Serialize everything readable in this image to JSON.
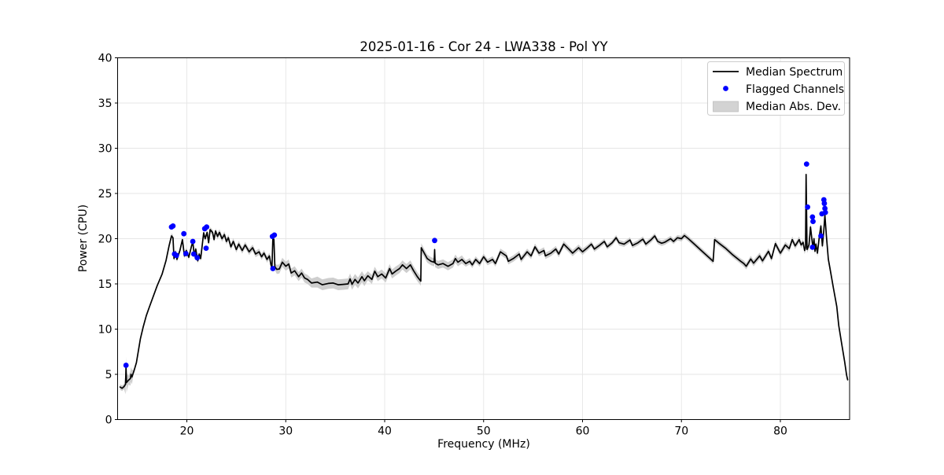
{
  "title": "2025-01-16 - Cor 24 - LWA338 - Pol YY",
  "axes": {
    "xlabel": "Frequency (MHz)",
    "ylabel": "Power (CPU)",
    "xlim": [
      13,
      87
    ],
    "ylim": [
      0,
      40
    ],
    "xticks": [
      20,
      30,
      40,
      50,
      60,
      70,
      80
    ],
    "yticks": [
      0,
      5,
      10,
      15,
      20,
      25,
      30,
      35,
      40
    ],
    "grid": true
  },
  "legend": {
    "position": "upper right",
    "entries": [
      {
        "label": "Median Spectrum",
        "type": "line",
        "color": "#000000"
      },
      {
        "label": "Flagged Channels",
        "type": "dot",
        "color": "#0000ff"
      },
      {
        "label": "Median Abs. Dev.",
        "type": "patch",
        "color": "#d3d3d3"
      }
    ]
  },
  "colors": {
    "median_line": "#000000",
    "flagged_dot": "#0000ff",
    "mad_band": "#c9c9c9",
    "grid": "#e6e6e6",
    "spine": "#000000",
    "background": "#ffffff",
    "legend_border": "#cccccc"
  },
  "chart_data": {
    "type": "line",
    "title": "2025-01-16 - Cor 24 - LWA338 - Pol YY",
    "xlabel": "Frequency (MHz)",
    "ylabel": "Power (CPU)",
    "xlim": [
      13,
      87
    ],
    "ylim": [
      0,
      40
    ],
    "legend_position": "upper right",
    "series": [
      {
        "name": "Median Spectrum",
        "kind": "line",
        "points": [
          [
            13.25,
            3.6
          ],
          [
            13.45,
            3.45
          ],
          [
            13.65,
            3.65
          ],
          [
            13.8,
            3.9
          ],
          [
            13.85,
            5.85
          ],
          [
            13.9,
            4.1
          ],
          [
            14.1,
            4.35
          ],
          [
            14.3,
            4.55
          ],
          [
            14.35,
            5.0
          ],
          [
            14.45,
            4.7
          ],
          [
            14.65,
            5.35
          ],
          [
            14.9,
            6.3
          ],
          [
            15.1,
            7.6
          ],
          [
            15.3,
            8.9
          ],
          [
            15.6,
            10.3
          ],
          [
            15.9,
            11.5
          ],
          [
            16.2,
            12.4
          ],
          [
            16.5,
            13.3
          ],
          [
            17.0,
            14.8
          ],
          [
            17.5,
            16.1
          ],
          [
            17.9,
            17.6
          ],
          [
            18.2,
            19.2
          ],
          [
            18.45,
            20.3
          ],
          [
            18.6,
            20.1
          ],
          [
            18.7,
            17.8
          ],
          [
            18.85,
            18.55
          ],
          [
            19.0,
            17.7
          ],
          [
            19.3,
            18.7
          ],
          [
            19.55,
            19.9
          ],
          [
            19.75,
            18.1
          ],
          [
            19.95,
            18.7
          ],
          [
            20.2,
            17.95
          ],
          [
            20.45,
            19.1
          ],
          [
            20.6,
            19.65
          ],
          [
            20.75,
            18.1
          ],
          [
            20.9,
            18.85
          ],
          [
            21.1,
            17.55
          ],
          [
            21.25,
            18.3
          ],
          [
            21.4,
            17.8
          ],
          [
            21.7,
            20.65
          ],
          [
            21.85,
            20.0
          ],
          [
            22.05,
            20.7
          ],
          [
            22.2,
            19.55
          ],
          [
            22.35,
            21.0
          ],
          [
            22.6,
            20.7
          ],
          [
            22.75,
            19.9
          ],
          [
            22.9,
            20.85
          ],
          [
            23.1,
            20.25
          ],
          [
            23.3,
            20.7
          ],
          [
            23.55,
            20.0
          ],
          [
            23.8,
            20.45
          ],
          [
            24.0,
            19.7
          ],
          [
            24.2,
            20.1
          ],
          [
            24.45,
            19.1
          ],
          [
            24.7,
            19.7
          ],
          [
            25.0,
            18.8
          ],
          [
            25.25,
            19.4
          ],
          [
            25.6,
            18.7
          ],
          [
            25.9,
            19.3
          ],
          [
            26.3,
            18.55
          ],
          [
            26.65,
            19.0
          ],
          [
            26.95,
            18.3
          ],
          [
            27.3,
            18.55
          ],
          [
            27.55,
            18.0
          ],
          [
            27.8,
            18.4
          ],
          [
            28.1,
            17.7
          ],
          [
            28.35,
            18.1
          ],
          [
            28.5,
            17.1
          ],
          [
            28.6,
            16.75
          ],
          [
            28.7,
            20.1
          ],
          [
            28.8,
            19.9
          ],
          [
            28.9,
            16.9
          ],
          [
            29.1,
            16.6
          ],
          [
            29.35,
            16.65
          ],
          [
            29.65,
            17.4
          ],
          [
            30.0,
            16.95
          ],
          [
            30.3,
            17.2
          ],
          [
            30.55,
            16.2
          ],
          [
            30.9,
            16.45
          ],
          [
            31.3,
            15.8
          ],
          [
            31.6,
            16.2
          ],
          [
            31.9,
            15.65
          ],
          [
            32.2,
            15.5
          ],
          [
            32.6,
            15.1
          ],
          [
            33.2,
            15.2
          ],
          [
            33.7,
            14.9
          ],
          [
            34.3,
            15.05
          ],
          [
            34.8,
            15.1
          ],
          [
            35.3,
            14.9
          ],
          [
            35.8,
            14.95
          ],
          [
            36.3,
            15.0
          ],
          [
            36.5,
            15.55
          ],
          [
            36.7,
            14.95
          ],
          [
            37.0,
            15.5
          ],
          [
            37.3,
            15.1
          ],
          [
            37.7,
            15.8
          ],
          [
            37.95,
            15.35
          ],
          [
            38.3,
            15.9
          ],
          [
            38.7,
            15.5
          ],
          [
            39.0,
            16.4
          ],
          [
            39.3,
            15.8
          ],
          [
            39.7,
            16.1
          ],
          [
            40.1,
            15.65
          ],
          [
            40.5,
            16.7
          ],
          [
            40.75,
            16.1
          ],
          [
            41.1,
            16.4
          ],
          [
            41.5,
            16.7
          ],
          [
            41.8,
            17.1
          ],
          [
            42.2,
            16.7
          ],
          [
            42.6,
            17.1
          ],
          [
            42.9,
            16.5
          ],
          [
            43.3,
            15.8
          ],
          [
            43.65,
            15.3
          ],
          [
            43.7,
            19.0
          ],
          [
            44.05,
            18.3
          ],
          [
            44.3,
            17.8
          ],
          [
            44.7,
            17.5
          ],
          [
            45.0,
            17.4
          ],
          [
            45.05,
            18.8
          ],
          [
            45.1,
            17.3
          ],
          [
            45.4,
            17.1
          ],
          [
            45.9,
            17.25
          ],
          [
            46.4,
            16.95
          ],
          [
            46.9,
            17.25
          ],
          [
            47.15,
            17.8
          ],
          [
            47.4,
            17.4
          ],
          [
            47.8,
            17.7
          ],
          [
            48.2,
            17.25
          ],
          [
            48.6,
            17.5
          ],
          [
            48.85,
            17.1
          ],
          [
            49.2,
            17.7
          ],
          [
            49.6,
            17.25
          ],
          [
            50.0,
            18.0
          ],
          [
            50.4,
            17.4
          ],
          [
            50.9,
            17.7
          ],
          [
            51.2,
            17.25
          ],
          [
            51.7,
            18.55
          ],
          [
            52.3,
            18.1
          ],
          [
            52.5,
            17.5
          ],
          [
            53.0,
            17.8
          ],
          [
            53.6,
            18.3
          ],
          [
            53.8,
            17.7
          ],
          [
            54.4,
            18.55
          ],
          [
            54.8,
            18.1
          ],
          [
            55.2,
            19.1
          ],
          [
            55.6,
            18.4
          ],
          [
            56.1,
            18.7
          ],
          [
            56.25,
            18.1
          ],
          [
            56.8,
            18.4
          ],
          [
            57.3,
            18.85
          ],
          [
            57.6,
            18.3
          ],
          [
            58.1,
            19.4
          ],
          [
            58.6,
            18.85
          ],
          [
            59.0,
            18.4
          ],
          [
            59.6,
            19.0
          ],
          [
            60.0,
            18.55
          ],
          [
            60.5,
            19.0
          ],
          [
            60.9,
            19.4
          ],
          [
            61.2,
            18.85
          ],
          [
            61.7,
            19.25
          ],
          [
            62.2,
            19.7
          ],
          [
            62.5,
            19.1
          ],
          [
            63.0,
            19.55
          ],
          [
            63.4,
            20.1
          ],
          [
            63.7,
            19.55
          ],
          [
            64.2,
            19.4
          ],
          [
            64.8,
            19.85
          ],
          [
            65.05,
            19.25
          ],
          [
            65.6,
            19.55
          ],
          [
            66.1,
            19.95
          ],
          [
            66.4,
            19.4
          ],
          [
            66.9,
            19.85
          ],
          [
            67.3,
            20.3
          ],
          [
            67.6,
            19.7
          ],
          [
            68.0,
            19.5
          ],
          [
            68.3,
            19.6
          ],
          [
            68.9,
            20.0
          ],
          [
            69.2,
            19.7
          ],
          [
            69.6,
            20.1
          ],
          [
            70.0,
            20.0
          ],
          [
            70.3,
            20.35
          ],
          [
            70.7,
            20.0
          ],
          [
            71.3,
            19.4
          ],
          [
            72.0,
            18.7
          ],
          [
            72.7,
            18.0
          ],
          [
            73.2,
            17.5
          ],
          [
            73.35,
            19.9
          ],
          [
            73.8,
            19.5
          ],
          [
            74.5,
            18.9
          ],
          [
            75.2,
            18.2
          ],
          [
            76.0,
            17.5
          ],
          [
            76.3,
            17.25
          ],
          [
            76.55,
            16.95
          ],
          [
            77.0,
            17.75
          ],
          [
            77.3,
            17.3
          ],
          [
            77.9,
            18.1
          ],
          [
            78.2,
            17.55
          ],
          [
            78.8,
            18.6
          ],
          [
            79.1,
            17.8
          ],
          [
            79.5,
            19.45
          ],
          [
            80.0,
            18.4
          ],
          [
            80.5,
            19.3
          ],
          [
            80.9,
            18.9
          ],
          [
            81.2,
            19.9
          ],
          [
            81.5,
            19.2
          ],
          [
            81.9,
            19.9
          ],
          [
            82.1,
            19.3
          ],
          [
            82.3,
            19.6
          ],
          [
            82.45,
            18.7
          ],
          [
            82.55,
            19.0
          ],
          [
            82.6,
            27.1
          ],
          [
            82.7,
            18.8
          ],
          [
            82.9,
            19.3
          ],
          [
            83.05,
            21.3
          ],
          [
            83.15,
            20.3
          ],
          [
            83.3,
            18.85
          ],
          [
            83.4,
            20.0
          ],
          [
            83.5,
            18.6
          ],
          [
            83.6,
            19.4
          ],
          [
            83.75,
            18.4
          ],
          [
            83.95,
            20.3
          ],
          [
            84.1,
            21.4
          ],
          [
            84.25,
            19.2
          ],
          [
            84.4,
            21.0
          ],
          [
            84.5,
            22.6
          ],
          [
            84.65,
            20.3
          ],
          [
            84.85,
            17.7
          ],
          [
            85.0,
            16.8
          ],
          [
            85.35,
            14.6
          ],
          [
            85.7,
            12.5
          ],
          [
            85.9,
            10.4
          ],
          [
            86.2,
            8.4
          ],
          [
            86.5,
            6.4
          ],
          [
            86.7,
            4.9
          ],
          [
            86.8,
            4.4
          ]
        ]
      },
      {
        "name": "Flagged Channels",
        "kind": "scatter",
        "points": [
          [
            13.85,
            6.0
          ],
          [
            18.45,
            21.3
          ],
          [
            18.6,
            21.4
          ],
          [
            18.75,
            18.3
          ],
          [
            18.95,
            18.15
          ],
          [
            19.7,
            20.55
          ],
          [
            19.9,
            18.35
          ],
          [
            20.6,
            19.7
          ],
          [
            20.7,
            18.3
          ],
          [
            21.05,
            17.9
          ],
          [
            21.8,
            21.1
          ],
          [
            22.0,
            21.3
          ],
          [
            21.95,
            18.95
          ],
          [
            28.65,
            20.25
          ],
          [
            28.85,
            20.4
          ],
          [
            28.7,
            16.7
          ],
          [
            45.05,
            19.8
          ],
          [
            82.65,
            28.25
          ],
          [
            82.75,
            23.5
          ],
          [
            83.25,
            22.4
          ],
          [
            83.3,
            21.9
          ],
          [
            83.25,
            19.05
          ],
          [
            84.1,
            20.3
          ],
          [
            84.2,
            22.75
          ],
          [
            84.4,
            24.3
          ],
          [
            84.45,
            23.9
          ],
          [
            84.5,
            23.35
          ],
          [
            84.55,
            22.9
          ]
        ]
      },
      {
        "name": "Median Abs. Dev.",
        "kind": "band",
        "mad_segments": [
          [
            13.0,
            13.7,
            0.3
          ],
          [
            13.7,
            14.0,
            1.1
          ],
          [
            14.0,
            14.2,
            0.5
          ],
          [
            14.2,
            14.45,
            0.8
          ],
          [
            14.45,
            18.0,
            0.15
          ],
          [
            18.0,
            23.0,
            0.3
          ],
          [
            23.0,
            29.0,
            0.35
          ],
          [
            29.0,
            33.0,
            0.5
          ],
          [
            33.0,
            38.0,
            0.6
          ],
          [
            38.0,
            44.0,
            0.5
          ],
          [
            44.0,
            48.0,
            0.45
          ],
          [
            48.0,
            60.0,
            0.35
          ],
          [
            60.0,
            70.0,
            0.3
          ],
          [
            70.0,
            76.0,
            0.3
          ],
          [
            76.0,
            82.4,
            0.35
          ],
          [
            82.4,
            85.0,
            0.4
          ],
          [
            85.0,
            86.8,
            0.25
          ]
        ]
      }
    ]
  }
}
